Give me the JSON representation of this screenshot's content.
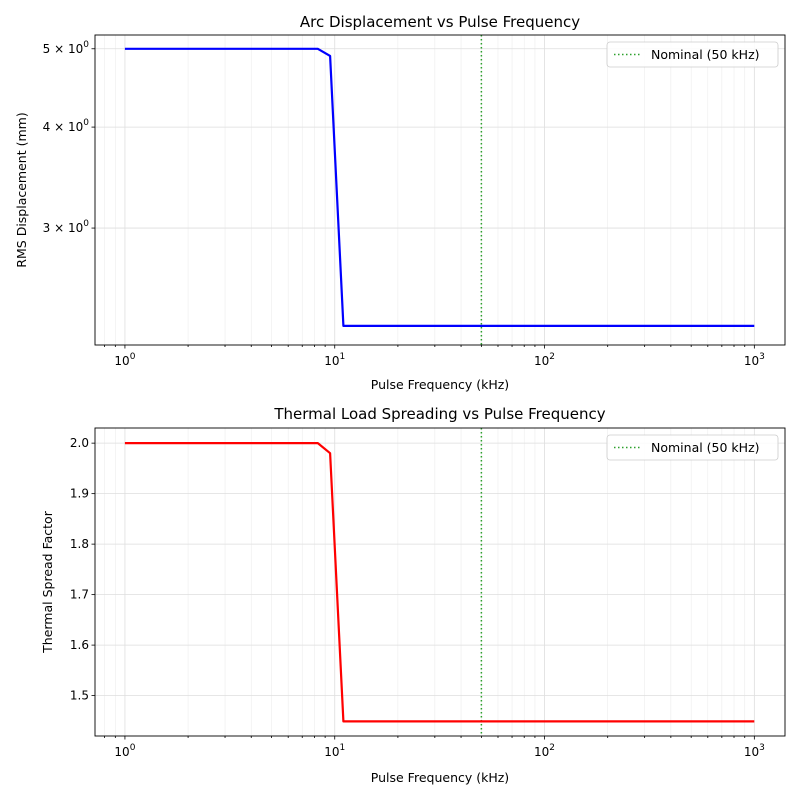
{
  "chart_data": [
    {
      "type": "line",
      "title": "Arc Displacement vs Pulse Frequency",
      "xlabel": "Pulse Frequency (kHz)",
      "ylabel": "RMS Displacement (mm)",
      "xscale": "log",
      "yscale": "log",
      "xlim": [
        0.72,
        1400
      ],
      "ylim": [
        2.15,
        5.2
      ],
      "x_ticks": [
        1,
        10,
        100,
        1000
      ],
      "x_tick_labels": [
        "10^0",
        "10^1",
        "10^2",
        "10^3"
      ],
      "y_ticks": [
        3,
        4,
        5
      ],
      "y_tick_labels": [
        "3 × 10^0",
        "4 × 10^0",
        "5 × 10^0"
      ],
      "grid": true,
      "legend_position": "upper right",
      "series": [
        {
          "name": "RMS Displacement",
          "color": "#0000ff",
          "x": [
            1.0,
            8.3,
            9.5,
            11.0,
            1000.0
          ],
          "y": [
            5.0,
            5.0,
            4.9,
            2.27,
            2.27
          ]
        }
      ],
      "annotations": [
        {
          "type": "vline",
          "x": 50,
          "color": "#2ca02c",
          "style": "dotted",
          "label": "Nominal (50 kHz)"
        }
      ]
    },
    {
      "type": "line",
      "title": "Thermal Load Spreading vs Pulse Frequency",
      "xlabel": "Pulse Frequency (kHz)",
      "ylabel": "Thermal Spread Factor",
      "xscale": "log",
      "yscale": "linear",
      "xlim": [
        0.72,
        1400
      ],
      "ylim": [
        1.42,
        2.03
      ],
      "x_ticks": [
        1,
        10,
        100,
        1000
      ],
      "x_tick_labels": [
        "10^0",
        "10^1",
        "10^2",
        "10^3"
      ],
      "y_ticks": [
        1.5,
        1.6,
        1.7,
        1.8,
        1.9,
        2.0
      ],
      "y_tick_labels": [
        "1.5",
        "1.6",
        "1.7",
        "1.8",
        "1.9",
        "2.0"
      ],
      "grid": true,
      "legend_position": "upper right",
      "series": [
        {
          "name": "Thermal Spread Factor",
          "color": "#ff0000",
          "x": [
            1.0,
            8.3,
            9.5,
            11.0,
            1000.0
          ],
          "y": [
            2.0,
            2.0,
            1.98,
            1.449,
            1.449
          ]
        }
      ],
      "annotations": [
        {
          "type": "vline",
          "x": 50,
          "color": "#2ca02c",
          "style": "dotted",
          "label": "Nominal (50 kHz)"
        }
      ]
    }
  ]
}
